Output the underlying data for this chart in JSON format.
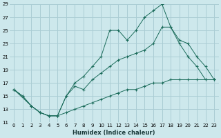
{
  "xlabel": "Humidex (Indice chaleur)",
  "bg_color": "#cde8ec",
  "grid_color": "#aacdd4",
  "line_color": "#1a6b5a",
  "xlim": [
    -0.5,
    23.5
  ],
  "ylim": [
    11,
    29
  ],
  "xticks": [
    0,
    1,
    2,
    3,
    4,
    5,
    6,
    7,
    8,
    9,
    10,
    11,
    12,
    13,
    14,
    15,
    16,
    17,
    18,
    19,
    20,
    21,
    22,
    23
  ],
  "yticks": [
    11,
    13,
    15,
    17,
    19,
    21,
    23,
    25,
    27,
    29
  ],
  "line1_x": [
    0,
    1,
    2,
    3,
    4,
    5,
    6,
    7,
    8,
    9,
    10,
    11,
    12,
    13,
    14,
    15,
    16,
    17,
    18,
    19,
    20,
    21,
    22,
    23
  ],
  "line1_y": [
    16,
    15,
    13.5,
    12.5,
    12,
    12,
    12.5,
    13,
    13.5,
    14,
    14.5,
    15,
    15.5,
    16,
    16,
    16.5,
    17,
    17,
    17.5,
    17.5,
    17.5,
    17.5,
    17.5,
    17.5
  ],
  "line2_x": [
    0,
    1,
    2,
    3,
    4,
    5,
    6,
    7,
    8,
    9,
    10,
    11,
    12,
    13,
    14,
    15,
    16,
    17,
    18,
    19,
    20,
    21,
    22,
    23
  ],
  "line2_y": [
    16,
    15,
    13.5,
    12.5,
    12,
    12,
    15,
    17,
    18,
    19.5,
    21,
    25,
    25,
    23.5,
    25,
    27,
    28,
    29,
    25.5,
    23,
    21,
    19.5,
    17.5,
    17.5
  ],
  "line3_x": [
    0,
    2,
    3,
    4,
    5,
    6,
    7,
    8,
    9,
    10,
    11,
    12,
    13,
    14,
    15,
    16,
    17,
    18,
    19,
    20,
    21,
    22,
    23
  ],
  "line3_y": [
    16,
    13.5,
    12.5,
    12,
    12,
    15,
    16.5,
    16,
    17.5,
    18.5,
    19.5,
    20.5,
    21,
    21.5,
    22,
    23,
    25.5,
    25.5,
    23.5,
    23,
    21,
    19.5,
    17.5
  ]
}
